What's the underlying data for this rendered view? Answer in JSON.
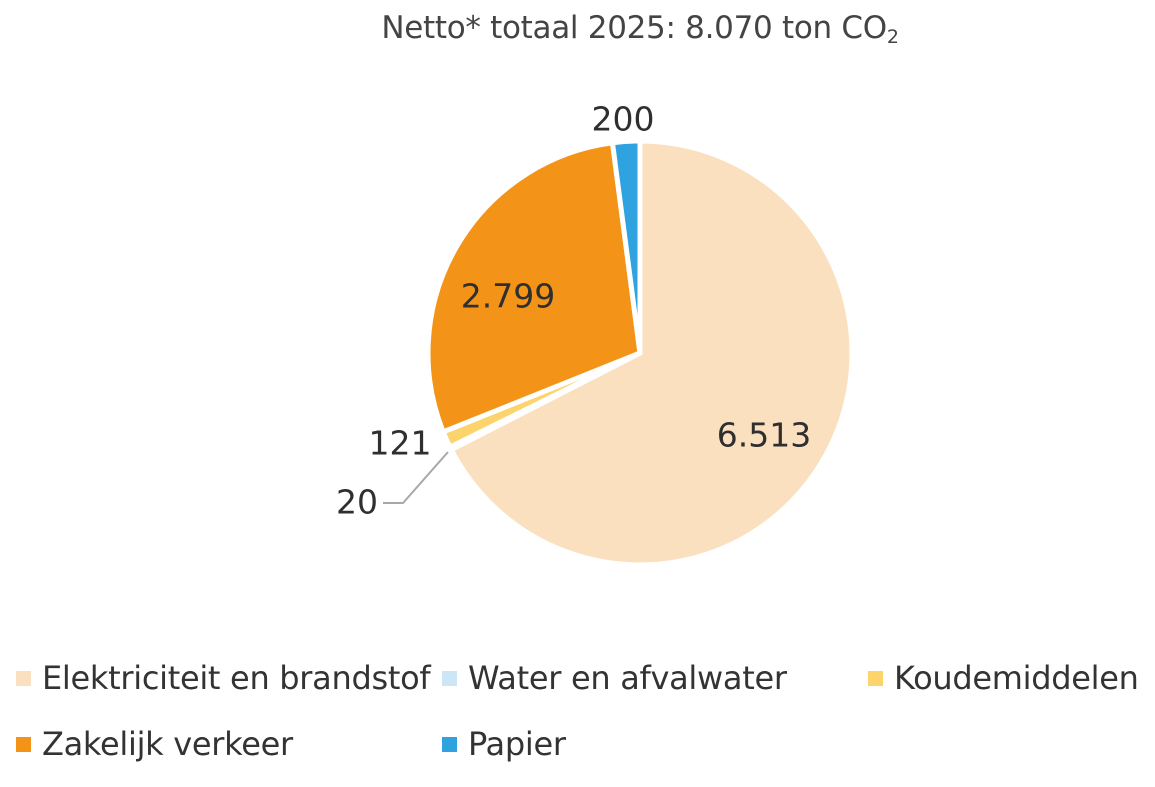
{
  "chart_data": {
    "type": "pie",
    "title_main": "Netto* totaal 2025: 8.070 ton CO",
    "title_sub": "2",
    "slices": [
      {
        "name": "Elektriciteit en brandstof",
        "value": 6513,
        "label": "6.513",
        "color": "#fbe0bf"
      },
      {
        "name": "Water en afvalwater",
        "value": 20,
        "label": "20",
        "color": "#cde6f5"
      },
      {
        "name": "Koudemiddelen",
        "value": 121,
        "label": "121",
        "color": "#fdd36b"
      },
      {
        "name": "Zakelijk verkeer",
        "value": 2799,
        "label": "2.799",
        "color": "#f39419"
      },
      {
        "name": "Papier",
        "value": 200,
        "label": "200",
        "color": "#2ea3df"
      }
    ],
    "start_angle": "12 o'clock",
    "direction": "clockwise",
    "legend_position": "bottom"
  }
}
